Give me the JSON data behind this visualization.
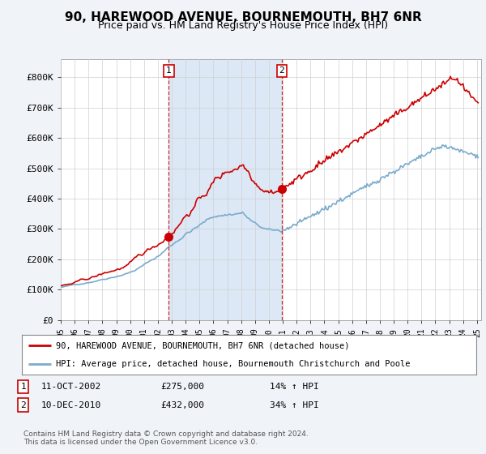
{
  "title": "90, HAREWOOD AVENUE, BOURNEMOUTH, BH7 6NR",
  "subtitle": "Price paid vs. HM Land Registry's House Price Index (HPI)",
  "ylim": [
    0,
    860000
  ],
  "yticks": [
    0,
    100000,
    200000,
    300000,
    400000,
    500000,
    600000,
    700000,
    800000
  ],
  "ytick_labels": [
    "£0",
    "£100K",
    "£200K",
    "£300K",
    "£400K",
    "£500K",
    "£600K",
    "£700K",
    "£800K"
  ],
  "sale1_price": 275000,
  "sale1_date_str": "11-OCT-2002",
  "sale1_pct": "14% ↑ HPI",
  "sale2_price": 432000,
  "sale2_date_str": "10-DEC-2010",
  "sale2_pct": "34% ↑ HPI",
  "red_line_color": "#cc0000",
  "blue_line_color": "#7aabcc",
  "vline_color": "#cc0000",
  "background_color": "#f0f4f8",
  "plot_bg_color": "#ffffff",
  "shade_color": "#dce8f5",
  "grid_color": "#d0d0d0",
  "legend_label_red": "90, HAREWOOD AVENUE, BOURNEMOUTH, BH7 6NR (detached house)",
  "legend_label_blue": "HPI: Average price, detached house, Bournemouth Christchurch and Poole",
  "footnote": "Contains HM Land Registry data © Crown copyright and database right 2024.\nThis data is licensed under the Open Government Licence v3.0.",
  "sale1_x": 2002.79,
  "sale2_x": 2010.92
}
